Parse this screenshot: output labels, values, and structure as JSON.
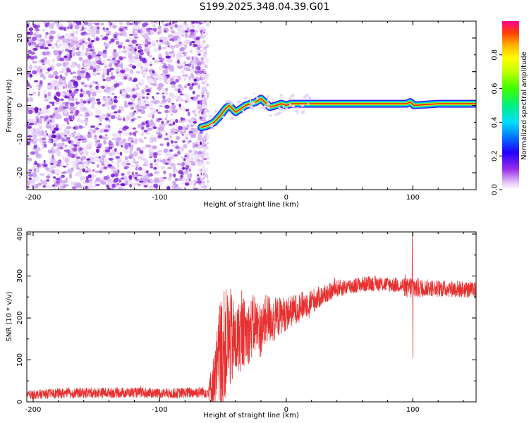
{
  "figure": {
    "title": "S199.2025.348.04.39.G01"
  },
  "chart_data": [
    {
      "type": "heatmap",
      "xlabel": "Height of straight line (km)",
      "ylabel": "Frequency (Hz)",
      "xlim": [
        -205,
        150
      ],
      "ylim": [
        -25,
        25
      ],
      "xticks": [
        -200,
        -100,
        0,
        100
      ],
      "yticks": [
        -20,
        -10,
        0,
        10,
        20
      ],
      "noise_region_x": [
        -205,
        -64
      ],
      "ridge": {
        "x": [
          -67,
          -62,
          -57,
          -52,
          -48,
          -45,
          -40,
          -36,
          -32,
          -28,
          -24,
          -20,
          -17,
          -13,
          -8,
          -4,
          0,
          4,
          8,
          12,
          20,
          40,
          60,
          80,
          95,
          98,
          101,
          120,
          150
        ],
        "freq": [
          -6.5,
          -6,
          -5,
          -3,
          -1,
          0,
          -2,
          -1,
          0,
          0.5,
          1,
          2,
          1,
          -0.5,
          0,
          0.5,
          0,
          0.5,
          0.5,
          0.5,
          0.5,
          0.5,
          0.5,
          0.5,
          0.5,
          1,
          0,
          0.5,
          0.5
        ]
      },
      "colorbar": {
        "label": "Normalized spectral amplitude",
        "range": [
          0,
          1
        ],
        "ticks": [
          0.0,
          0.2,
          0.4,
          0.6,
          0.8
        ],
        "tick_labels": [
          "0.0",
          "0.2",
          "0.4",
          "0.6",
          "0.8"
        ]
      }
    },
    {
      "type": "line",
      "xlabel": "Height of straight line (km)",
      "ylabel": "SNR (10 * v/v)",
      "xlim": [
        -205,
        150
      ],
      "ylim": [
        0,
        405
      ],
      "xticks": [
        -200,
        -100,
        0,
        100
      ],
      "yticks": [
        0,
        100,
        200,
        300,
        400
      ],
      "color": "#e83030",
      "series": [
        {
          "name": "SNR",
          "x": [
            -205,
            -180,
            -150,
            -120,
            -90,
            -62,
            -56,
            -52,
            -48,
            -44,
            -40,
            -35,
            -30,
            -25,
            -20,
            -15,
            -10,
            -5,
            0,
            10,
            20,
            30,
            40,
            50,
            60,
            70,
            80,
            90,
            96,
            100,
            104,
            110,
            120,
            130,
            140,
            150
          ],
          "mean": [
            17,
            20,
            22,
            22,
            20,
            24,
            55,
            110,
            140,
            150,
            140,
            165,
            165,
            185,
            170,
            200,
            195,
            205,
            210,
            225,
            240,
            255,
            270,
            275,
            280,
            282,
            280,
            278,
            270,
            275,
            270,
            272,
            270,
            270,
            268,
            265
          ],
          "amp": [
            10,
            12,
            12,
            12,
            12,
            14,
            80,
            150,
            130,
            120,
            90,
            85,
            75,
            75,
            65,
            60,
            55,
            45,
            40,
            35,
            30,
            22,
            20,
            20,
            18,
            18,
            18,
            18,
            25,
            30,
            25,
            20,
            20,
            20,
            20,
            20
          ],
          "spikes": [
            {
              "x": 99.5,
              "y": 400
            },
            {
              "x": 100.0,
              "y": 105
            }
          ]
        }
      ]
    }
  ]
}
